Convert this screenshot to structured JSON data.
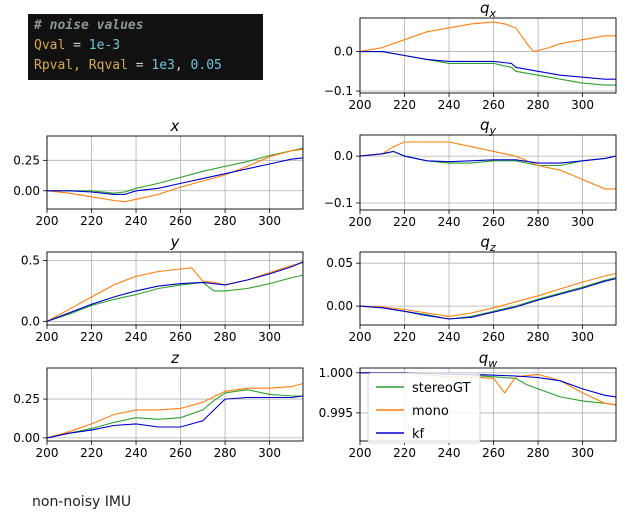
{
  "code": {
    "comment": "# noise values",
    "line1": {
      "var": "Qval",
      "op": " = ",
      "val": "1e-3"
    },
    "line2": {
      "var": "Rpval, Rqval",
      "op": " = ",
      "val1": "1e3",
      "sep": ", ",
      "val2": "0.05"
    }
  },
  "caption": "non-noisy IMU",
  "colors": {
    "stereoGT": "#2ca02c",
    "mono": "#ff7f0e",
    "kf": "#0000cc"
  },
  "chart_data": [
    {
      "type": "line",
      "title": "x",
      "xlim": [
        200,
        315
      ],
      "ylim": [
        -0.15,
        0.45
      ],
      "yticks": [
        0.0,
        0.25
      ],
      "ytick_labels": [
        "0.00",
        "0.25"
      ],
      "xticks": [
        200,
        220,
        240,
        260,
        280,
        300
      ],
      "grid": true,
      "series": [
        {
          "name": "stereoGT",
          "x": [
            200,
            210,
            220,
            230,
            235,
            240,
            250,
            260,
            270,
            280,
            290,
            300,
            310,
            315
          ],
          "y": [
            0.0,
            0.0,
            0.0,
            -0.02,
            -0.01,
            0.02,
            0.06,
            0.11,
            0.16,
            0.2,
            0.24,
            0.29,
            0.33,
            0.35
          ]
        },
        {
          "name": "mono",
          "x": [
            200,
            210,
            220,
            230,
            235,
            240,
            250,
            260,
            270,
            280,
            290,
            300,
            310,
            315
          ],
          "y": [
            0.0,
            -0.02,
            -0.05,
            -0.08,
            -0.09,
            -0.07,
            -0.03,
            0.03,
            0.08,
            0.13,
            0.2,
            0.28,
            0.33,
            0.34
          ]
        },
        {
          "name": "kf",
          "x": [
            200,
            210,
            220,
            230,
            235,
            240,
            250,
            260,
            270,
            280,
            290,
            300,
            310,
            315
          ],
          "y": [
            0.0,
            0.0,
            -0.01,
            -0.03,
            -0.03,
            0.0,
            0.02,
            0.06,
            0.1,
            0.14,
            0.18,
            0.22,
            0.26,
            0.27
          ]
        }
      ]
    },
    {
      "type": "line",
      "title": "y",
      "xlim": [
        200,
        315
      ],
      "ylim": [
        -0.03,
        0.57
      ],
      "yticks": [
        0.0,
        0.5
      ],
      "ytick_labels": [
        "0.0",
        "0.5"
      ],
      "xticks": [
        200,
        220,
        240,
        260,
        280,
        300
      ],
      "grid": true,
      "series": [
        {
          "name": "stereoGT",
          "x": [
            200,
            210,
            220,
            230,
            240,
            250,
            260,
            270,
            275,
            280,
            290,
            300,
            310,
            315
          ],
          "y": [
            0.0,
            0.06,
            0.13,
            0.18,
            0.22,
            0.27,
            0.3,
            0.32,
            0.25,
            0.25,
            0.27,
            0.31,
            0.36,
            0.38
          ]
        },
        {
          "name": "mono",
          "x": [
            200,
            210,
            220,
            230,
            240,
            250,
            260,
            265,
            270,
            275,
            280,
            290,
            300,
            310,
            315
          ],
          "y": [
            0.0,
            0.1,
            0.2,
            0.3,
            0.37,
            0.41,
            0.43,
            0.44,
            0.33,
            0.32,
            0.3,
            0.34,
            0.4,
            0.46,
            0.48
          ]
        },
        {
          "name": "kf",
          "x": [
            200,
            210,
            220,
            230,
            240,
            250,
            260,
            270,
            280,
            290,
            300,
            310,
            315
          ],
          "y": [
            0.0,
            0.07,
            0.14,
            0.2,
            0.25,
            0.29,
            0.31,
            0.32,
            0.3,
            0.34,
            0.39,
            0.45,
            0.49
          ]
        }
      ]
    },
    {
      "type": "line",
      "title": "z",
      "xlim": [
        200,
        315
      ],
      "ylim": [
        -0.02,
        0.45
      ],
      "yticks": [
        0.0,
        0.25
      ],
      "ytick_labels": [
        "0.00",
        "0.25"
      ],
      "xticks": [
        200,
        220,
        240,
        260,
        280,
        300
      ],
      "grid": true,
      "series": [
        {
          "name": "stereoGT",
          "x": [
            200,
            210,
            220,
            230,
            240,
            250,
            260,
            270,
            275,
            280,
            290,
            300,
            310,
            315
          ],
          "y": [
            0.0,
            0.03,
            0.06,
            0.1,
            0.13,
            0.12,
            0.13,
            0.18,
            0.24,
            0.29,
            0.31,
            0.28,
            0.27,
            0.27
          ]
        },
        {
          "name": "mono",
          "x": [
            200,
            210,
            220,
            230,
            240,
            250,
            260,
            270,
            280,
            290,
            300,
            310,
            315
          ],
          "y": [
            0.0,
            0.04,
            0.09,
            0.15,
            0.18,
            0.18,
            0.19,
            0.23,
            0.3,
            0.32,
            0.32,
            0.33,
            0.35
          ]
        },
        {
          "name": "kf",
          "x": [
            200,
            210,
            220,
            230,
            240,
            250,
            260,
            270,
            275,
            280,
            290,
            300,
            310,
            315
          ],
          "y": [
            0.0,
            0.03,
            0.05,
            0.08,
            0.09,
            0.07,
            0.07,
            0.11,
            0.18,
            0.25,
            0.26,
            0.26,
            0.26,
            0.27
          ]
        }
      ]
    },
    {
      "type": "line",
      "title": "q_x",
      "xlim": [
        200,
        315
      ],
      "ylim": [
        -0.105,
        0.085
      ],
      "yticks": [
        0.0,
        -0.1
      ],
      "ytick_labels": [
        "0.0",
        "−0.1"
      ],
      "xticks": [
        200,
        220,
        240,
        260,
        280,
        300
      ],
      "grid": true,
      "series": [
        {
          "name": "stereoGT",
          "x": [
            200,
            210,
            220,
            230,
            240,
            250,
            260,
            268,
            270,
            280,
            290,
            300,
            310,
            315
          ],
          "y": [
            0.0,
            0.0,
            -0.01,
            -0.02,
            -0.03,
            -0.03,
            -0.03,
            -0.04,
            -0.05,
            -0.06,
            -0.07,
            -0.08,
            -0.085,
            -0.085
          ]
        },
        {
          "name": "mono",
          "x": [
            200,
            210,
            220,
            230,
            240,
            250,
            260,
            265,
            270,
            275,
            278,
            285,
            290,
            300,
            310,
            315
          ],
          "y": [
            0.0,
            0.01,
            0.03,
            0.05,
            0.06,
            0.07,
            0.075,
            0.07,
            0.06,
            0.02,
            0.0,
            0.01,
            0.02,
            0.03,
            0.04,
            0.04
          ]
        },
        {
          "name": "kf",
          "x": [
            200,
            210,
            220,
            230,
            240,
            250,
            260,
            268,
            270,
            280,
            290,
            300,
            310,
            315
          ],
          "y": [
            0.0,
            0.0,
            -0.01,
            -0.02,
            -0.025,
            -0.025,
            -0.025,
            -0.03,
            -0.04,
            -0.05,
            -0.06,
            -0.065,
            -0.07,
            -0.07
          ]
        }
      ]
    },
    {
      "type": "line",
      "title": "q_y",
      "xlim": [
        200,
        315
      ],
      "ylim": [
        -0.115,
        0.045
      ],
      "yticks": [
        0.0,
        -0.1
      ],
      "ytick_labels": [
        "0.0",
        "−0.1"
      ],
      "xticks": [
        200,
        220,
        240,
        260,
        280,
        300
      ],
      "grid": true,
      "series": [
        {
          "name": "stereoGT",
          "x": [
            200,
            210,
            215,
            220,
            230,
            240,
            250,
            260,
            270,
            280,
            290,
            300,
            310,
            315
          ],
          "y": [
            0.0,
            0.005,
            0.01,
            0.0,
            -0.01,
            -0.015,
            -0.015,
            -0.01,
            -0.01,
            -0.02,
            -0.02,
            -0.01,
            -0.005,
            0.0
          ]
        },
        {
          "name": "mono",
          "x": [
            200,
            210,
            215,
            220,
            230,
            240,
            250,
            260,
            270,
            280,
            290,
            295,
            300,
            310,
            315
          ],
          "y": [
            0.0,
            0.005,
            0.02,
            0.03,
            0.03,
            0.03,
            0.02,
            0.01,
            0.0,
            -0.02,
            -0.03,
            -0.04,
            -0.05,
            -0.07,
            -0.07
          ]
        },
        {
          "name": "kf",
          "x": [
            200,
            210,
            215,
            220,
            230,
            240,
            250,
            260,
            270,
            280,
            290,
            300,
            310,
            315
          ],
          "y": [
            0.0,
            0.005,
            0.01,
            0.0,
            -0.01,
            -0.012,
            -0.01,
            -0.008,
            -0.008,
            -0.015,
            -0.015,
            -0.01,
            -0.005,
            0.0
          ]
        }
      ]
    },
    {
      "type": "line",
      "title": "q_z",
      "xlim": [
        200,
        315
      ],
      "ylim": [
        -0.022,
        0.063
      ],
      "yticks": [
        0.0,
        0.05
      ],
      "ytick_labels": [
        "0.00",
        "0.05"
      ],
      "xticks": [
        200,
        220,
        240,
        260,
        280,
        300
      ],
      "grid": true,
      "series": [
        {
          "name": "stereoGT",
          "x": [
            200,
            210,
            220,
            230,
            240,
            250,
            260,
            270,
            280,
            290,
            300,
            310,
            315
          ],
          "y": [
            0.0,
            -0.002,
            -0.006,
            -0.01,
            -0.015,
            -0.012,
            -0.006,
            0.0,
            0.008,
            0.015,
            0.022,
            0.03,
            0.033
          ]
        },
        {
          "name": "mono",
          "x": [
            200,
            210,
            220,
            230,
            240,
            250,
            260,
            270,
            280,
            290,
            300,
            310,
            315
          ],
          "y": [
            0.0,
            -0.001,
            -0.004,
            -0.008,
            -0.012,
            -0.008,
            -0.002,
            0.005,
            0.012,
            0.02,
            0.028,
            0.035,
            0.038
          ]
        },
        {
          "name": "kf",
          "x": [
            200,
            210,
            220,
            230,
            240,
            250,
            260,
            270,
            280,
            290,
            300,
            310,
            315
          ],
          "y": [
            0.0,
            -0.002,
            -0.006,
            -0.011,
            -0.015,
            -0.013,
            -0.007,
            -0.001,
            0.007,
            0.014,
            0.021,
            0.029,
            0.032
          ]
        }
      ]
    },
    {
      "type": "line",
      "title": "q_w",
      "xlim": [
        200,
        315
      ],
      "ylim": [
        0.9915,
        1.0006
      ],
      "yticks": [
        1.0,
        0.995
      ],
      "ytick_labels": [
        "1.000",
        "0.995"
      ],
      "xticks": [
        200,
        220,
        240,
        260,
        280,
        300
      ],
      "grid": true,
      "legend": {
        "placement": "lower-left",
        "entries": [
          "stereoGT",
          "mono",
          "kf"
        ]
      },
      "series": [
        {
          "name": "stereoGT",
          "x": [
            200,
            220,
            240,
            250,
            260,
            270,
            275,
            280,
            290,
            300,
            310,
            315
          ],
          "y": [
            1.0,
            1.0,
            0.9998,
            0.9997,
            0.9995,
            0.9993,
            0.9985,
            0.998,
            0.997,
            0.9965,
            0.9962,
            0.996
          ]
        },
        {
          "name": "mono",
          "x": [
            200,
            220,
            240,
            255,
            260,
            265,
            270,
            280,
            290,
            300,
            310,
            315
          ],
          "y": [
            1.0,
            1.0,
            0.9995,
            0.9994,
            0.9993,
            0.9975,
            0.9995,
            0.9998,
            0.999,
            0.9975,
            0.9962,
            0.996
          ]
        },
        {
          "name": "kf",
          "x": [
            200,
            220,
            240,
            250,
            260,
            270,
            280,
            290,
            300,
            310,
            315
          ],
          "y": [
            1.0,
            1.0,
            0.9998,
            0.9998,
            0.9997,
            0.9996,
            0.9994,
            0.999,
            0.998,
            0.9972,
            0.997
          ]
        }
      ]
    }
  ]
}
